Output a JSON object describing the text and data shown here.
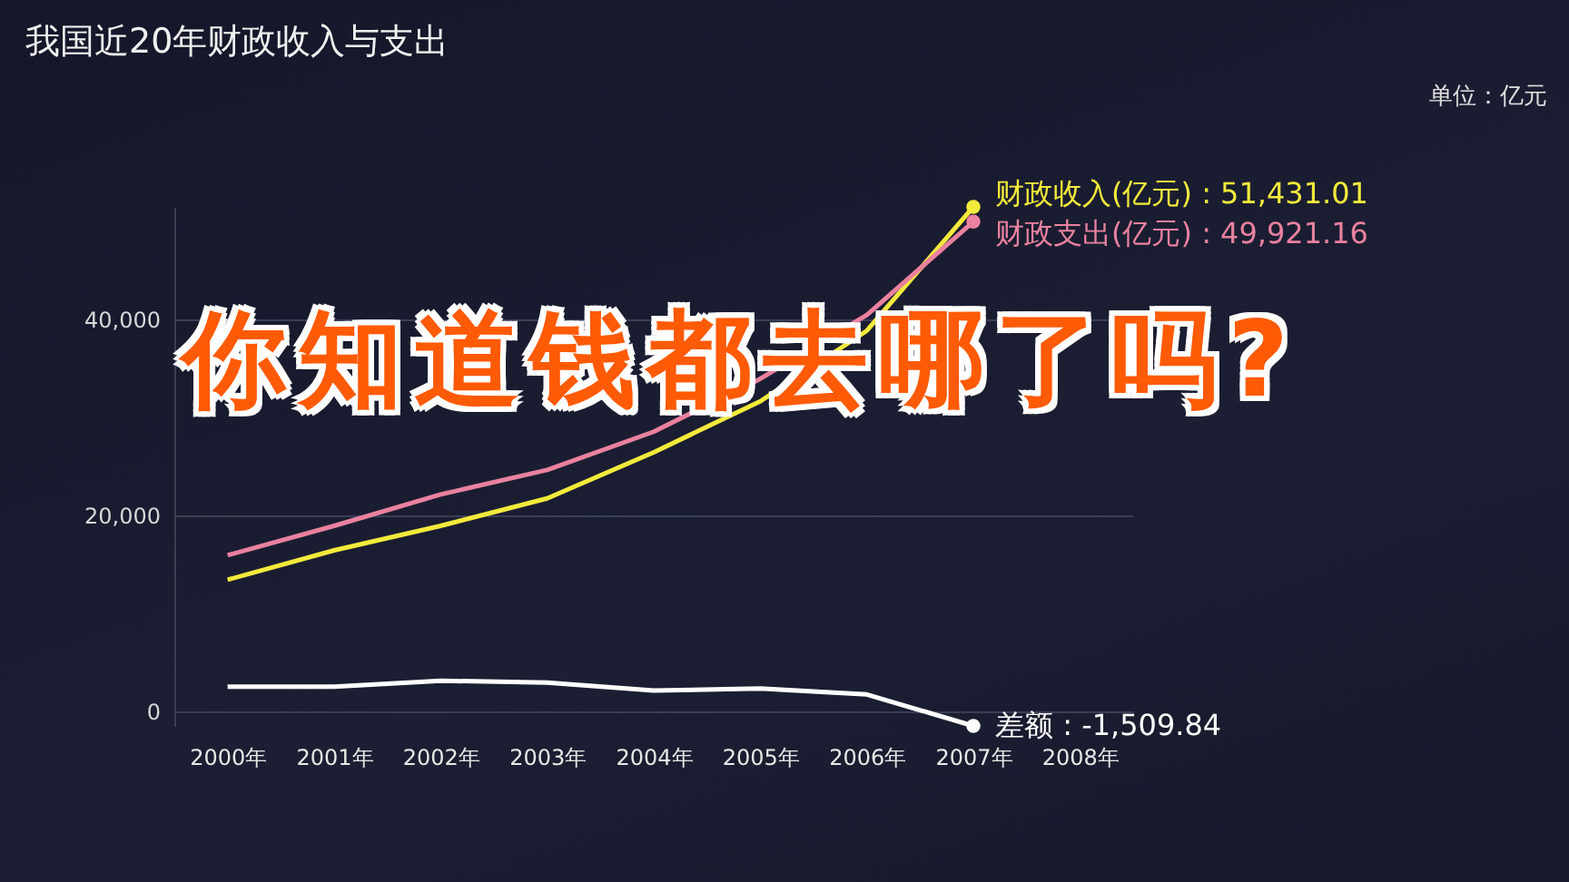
{
  "chart_data": {
    "type": "line",
    "title": "我国近20年财政收入与支出",
    "annotations": [
      "单位：亿元",
      "你知道钱都去哪了吗?"
    ],
    "categories": [
      "2000年",
      "2001年",
      "2002年",
      "2003年",
      "2004年",
      "2005年",
      "2006年",
      "2007年",
      "2008年"
    ],
    "series": [
      {
        "name": "财政收入(亿元)",
        "color": "#f3ea3c",
        "values": [
          13400,
          16400,
          18900,
          21700,
          26400,
          31600,
          38800,
          51431.01,
          null
        ],
        "value_labels": [
          null,
          null,
          null,
          null,
          null,
          null,
          null,
          ": 51,431.01",
          null
        ]
      },
      {
        "name": "财政支出(亿元)",
        "color": "#e9819f",
        "values": [
          15900,
          18900,
          22100,
          24600,
          28500,
          33900,
          40400,
          49921.16,
          null
        ],
        "value_labels": [
          null,
          null,
          null,
          null,
          null,
          null,
          null,
          ": 49,921.16",
          null
        ]
      },
      {
        "name": "差额",
        "color": "#ffffff",
        "values": [
          2500,
          2500,
          3100,
          2900,
          2100,
          2300,
          1700,
          -1509.84,
          null
        ],
        "value_labels": [
          null,
          null,
          null,
          null,
          null,
          null,
          null,
          ": -1,509.84",
          null
        ]
      }
    ],
    "ylim": [
      -1509.84,
      51431.01
    ],
    "yticks": [
      0,
      {
        "value": 20000,
        "label": "20,000"
      },
      {
        "value": 40000,
        "label": "40,000"
      }
    ],
    "grid": "y"
  }
}
